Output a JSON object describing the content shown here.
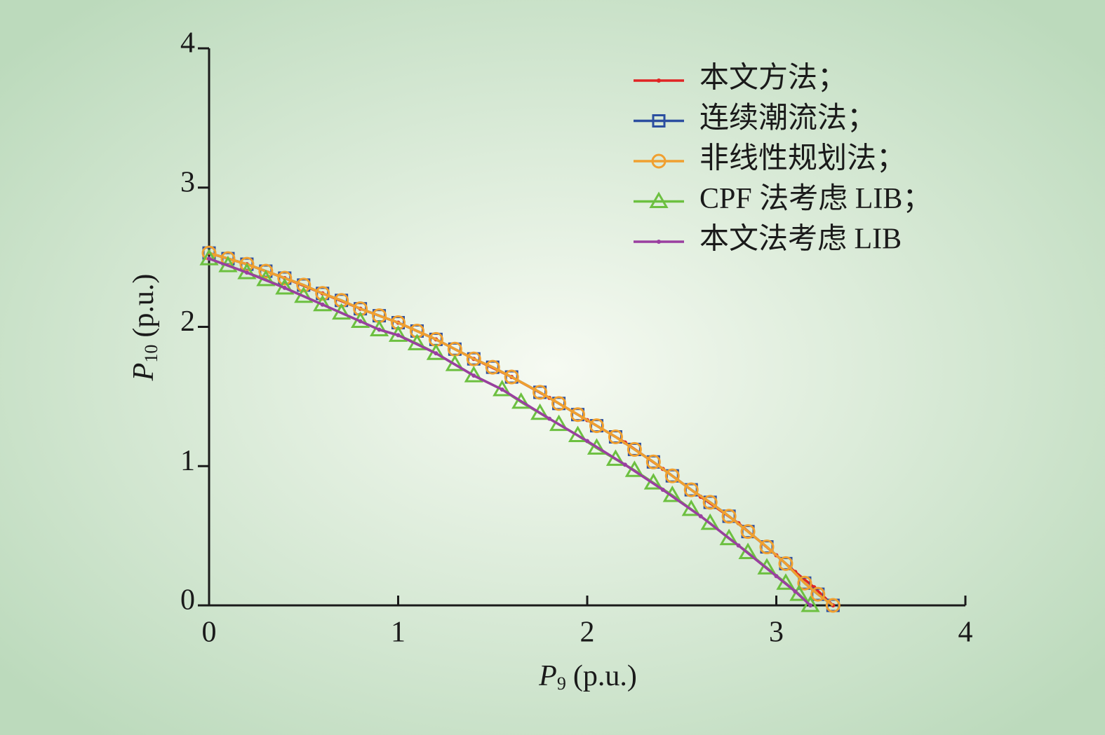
{
  "chart_data": {
    "type": "line",
    "xlabel": {
      "symbol": "P",
      "subscript": "9",
      "unit": "(p.u.)"
    },
    "ylabel": {
      "symbol": "P",
      "subscript": "10",
      "unit": "(p.u.)"
    },
    "xlim": [
      0,
      4
    ],
    "xticks": [
      0,
      1,
      2,
      3,
      4
    ],
    "ylim": [
      0,
      4
    ],
    "yticks": [
      0,
      1,
      2,
      3,
      4
    ],
    "grid": false,
    "legend": "upper right",
    "series": [
      {
        "name": "本文方法；",
        "color": "#e02424",
        "marker": "dot",
        "x": [
          0,
          0.2,
          0.4,
          0.6,
          0.8,
          1.0,
          1.2,
          1.4,
          1.6,
          1.8,
          2.0,
          2.2,
          2.4,
          2.6,
          2.8,
          3.0,
          3.1,
          3.2,
          3.3
        ],
        "values": [
          2.53,
          2.45,
          2.35,
          2.24,
          2.13,
          2.03,
          1.91,
          1.77,
          1.64,
          1.49,
          1.33,
          1.17,
          0.98,
          0.78,
          0.59,
          0.36,
          0.24,
          0.13,
          0
        ]
      },
      {
        "name": "连续潮流法；",
        "color": "#2b4ea0",
        "marker": "square",
        "x": [
          0,
          0.1,
          0.2,
          0.3,
          0.4,
          0.5,
          0.6,
          0.7,
          0.8,
          0.9,
          1.0,
          1.1,
          1.2,
          1.3,
          1.4,
          1.5,
          1.6,
          1.75,
          1.85,
          1.95,
          2.05,
          2.15,
          2.25,
          2.35,
          2.45,
          2.55,
          2.65,
          2.75,
          2.85,
          2.95,
          3.05,
          3.15,
          3.22,
          3.3
        ],
        "values": [
          2.53,
          2.49,
          2.45,
          2.4,
          2.35,
          2.3,
          2.24,
          2.19,
          2.13,
          2.08,
          2.03,
          1.97,
          1.91,
          1.84,
          1.77,
          1.71,
          1.64,
          1.53,
          1.45,
          1.37,
          1.29,
          1.21,
          1.12,
          1.03,
          0.93,
          0.83,
          0.74,
          0.64,
          0.53,
          0.42,
          0.3,
          0.16,
          0.08,
          0
        ]
      },
      {
        "name": "非线性规划法；",
        "color": "#f0a030",
        "marker": "circle",
        "x": [
          0,
          0.1,
          0.2,
          0.3,
          0.4,
          0.5,
          0.6,
          0.7,
          0.8,
          0.9,
          1.0,
          1.1,
          1.2,
          1.3,
          1.4,
          1.5,
          1.6,
          1.75,
          1.85,
          1.95,
          2.05,
          2.15,
          2.25,
          2.35,
          2.45,
          2.55,
          2.65,
          2.75,
          2.85,
          2.95,
          3.05,
          3.15,
          3.22,
          3.3
        ],
        "values": [
          2.53,
          2.49,
          2.45,
          2.4,
          2.35,
          2.3,
          2.24,
          2.19,
          2.13,
          2.08,
          2.03,
          1.97,
          1.91,
          1.84,
          1.77,
          1.71,
          1.64,
          1.53,
          1.45,
          1.37,
          1.29,
          1.21,
          1.12,
          1.03,
          0.93,
          0.83,
          0.74,
          0.64,
          0.53,
          0.42,
          0.3,
          0.16,
          0.08,
          0
        ]
      },
      {
        "name": "CPF 法考虑 LIB；",
        "color": "#6cc040",
        "marker": "triangle",
        "x": [
          0,
          0.1,
          0.2,
          0.3,
          0.4,
          0.5,
          0.6,
          0.7,
          0.8,
          0.9,
          1.0,
          1.1,
          1.2,
          1.3,
          1.4,
          1.55,
          1.65,
          1.75,
          1.85,
          1.95,
          2.05,
          2.15,
          2.25,
          2.35,
          2.45,
          2.55,
          2.65,
          2.75,
          2.85,
          2.95,
          3.05,
          3.12,
          3.18
        ],
        "values": [
          2.49,
          2.44,
          2.39,
          2.34,
          2.28,
          2.22,
          2.16,
          2.1,
          2.04,
          1.98,
          1.94,
          1.88,
          1.81,
          1.73,
          1.65,
          1.55,
          1.46,
          1.38,
          1.3,
          1.22,
          1.13,
          1.05,
          0.97,
          0.88,
          0.79,
          0.69,
          0.59,
          0.48,
          0.38,
          0.27,
          0.16,
          0.08,
          0
        ]
      },
      {
        "name": "本文法考虑 LIB",
        "color": "#9a3fa0",
        "marker": "dot",
        "x": [
          0,
          0.2,
          0.4,
          0.6,
          0.8,
          0.9,
          1.0,
          1.2,
          1.4,
          1.55,
          1.8,
          2.0,
          2.2,
          2.4,
          2.6,
          2.8,
          3.0,
          3.1,
          3.18
        ],
        "values": [
          2.49,
          2.39,
          2.28,
          2.16,
          2.04,
          1.98,
          1.94,
          1.81,
          1.65,
          1.55,
          1.34,
          1.18,
          1.01,
          0.83,
          0.64,
          0.43,
          0.21,
          0.1,
          0
        ]
      }
    ]
  }
}
